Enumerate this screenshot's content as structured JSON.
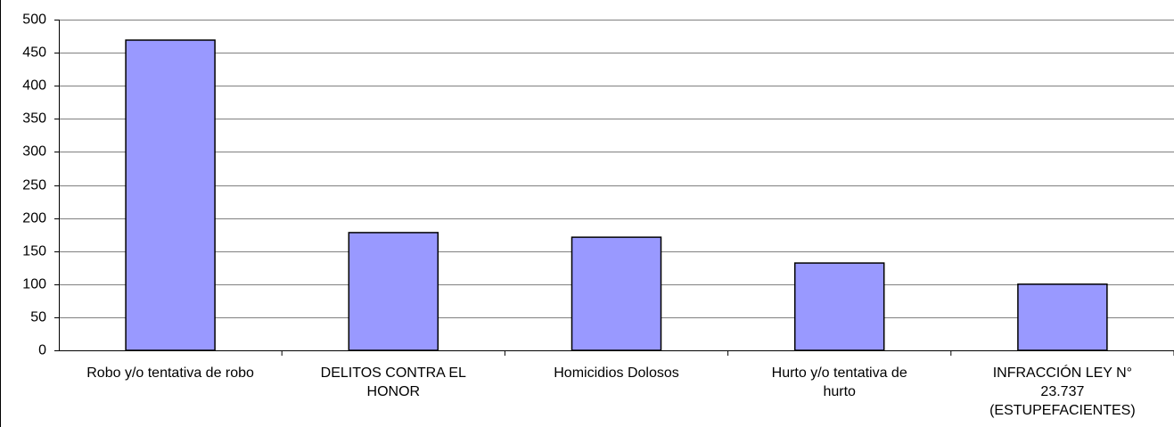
{
  "chart_data": {
    "type": "bar",
    "categories": [
      "Robo y/o tentativa de robo",
      "DELITOS CONTRA EL HONOR",
      "Homicidios Dolosos",
      "Hurto y/o tentativa de hurto",
      "INFRACCIÓN LEY N° 23.737 (ESTUPEFACIENTES)"
    ],
    "values": [
      469,
      178,
      171,
      132,
      100
    ],
    "color": "#9999ff",
    "ylim": [
      0,
      500
    ],
    "yticks": [
      0,
      50,
      100,
      150,
      200,
      250,
      300,
      350,
      400,
      450,
      500
    ],
    "grid": true
  }
}
